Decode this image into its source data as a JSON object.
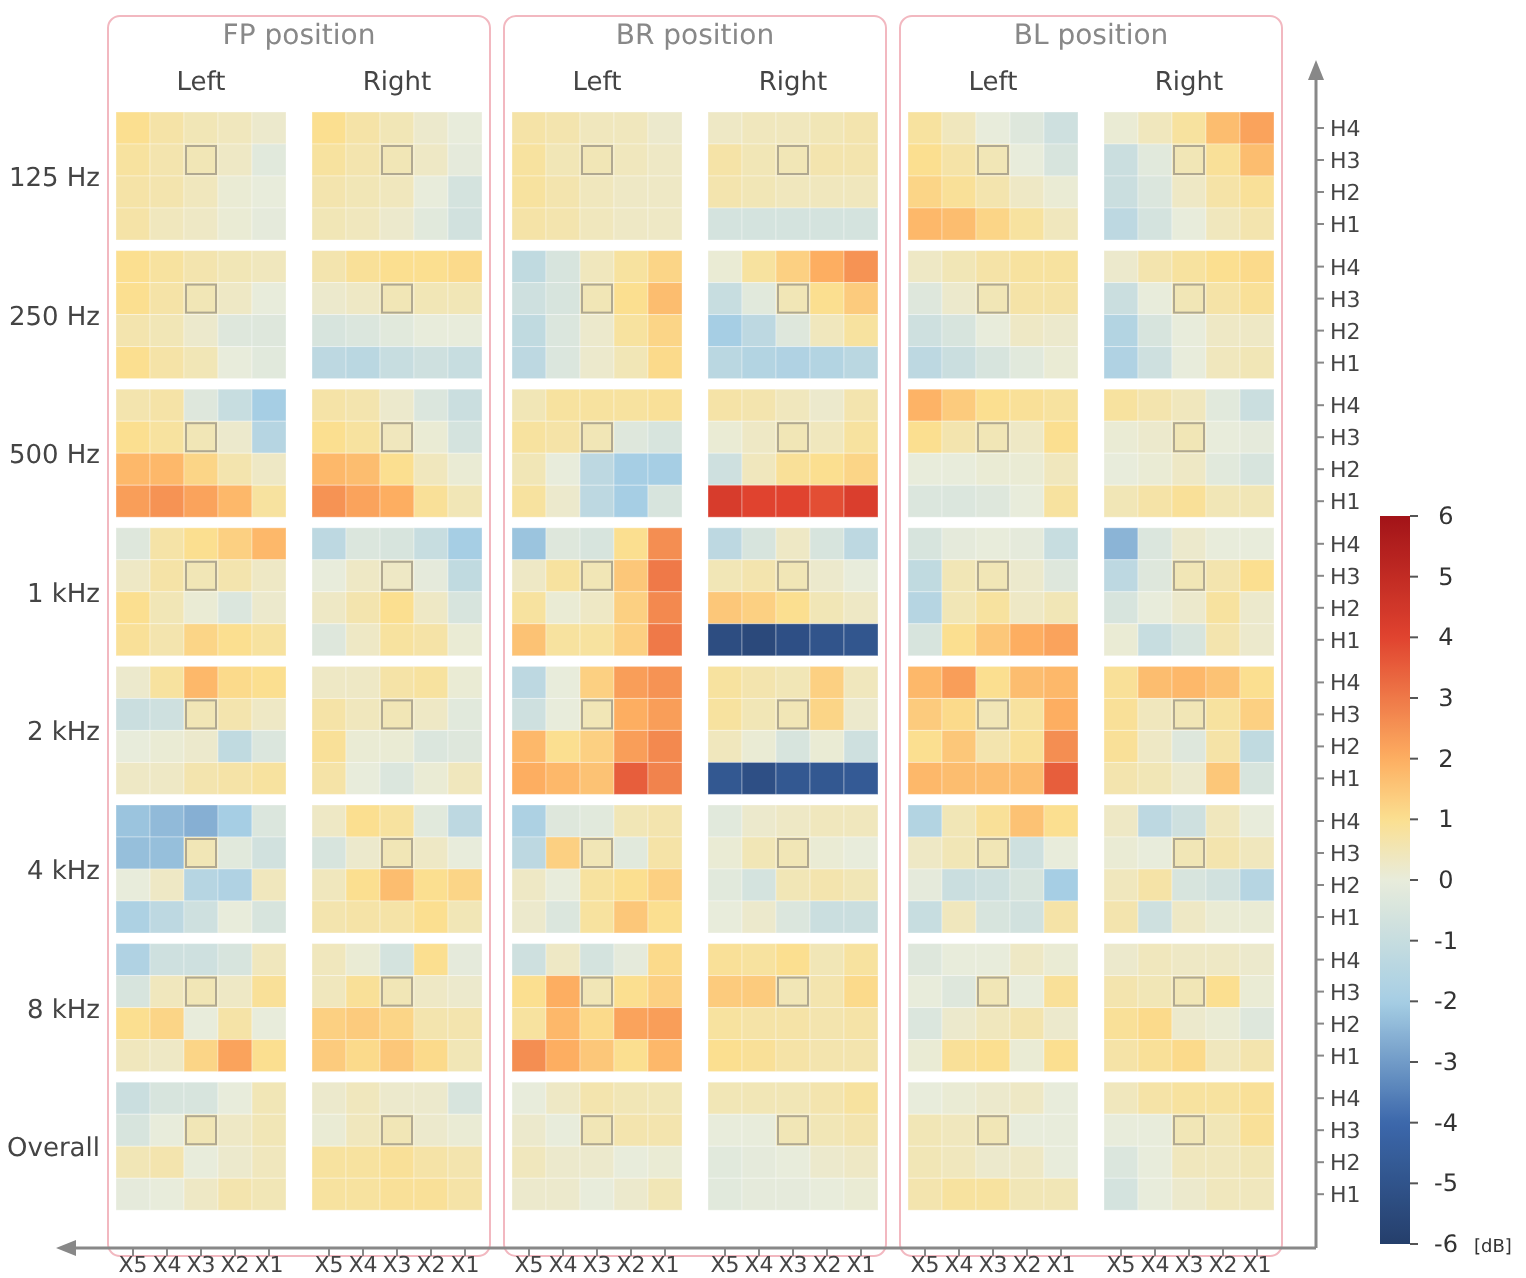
{
  "chart_data": {
    "type": "heatmap",
    "annotations": [
      "FP position",
      "Left",
      "Right",
      "BR position",
      "Left",
      "Right",
      "BL position",
      "Left",
      "Right",
      "125 Hz",
      "250 Hz",
      "500 Hz",
      "1 kHz",
      "2 kHz",
      "4 kHz",
      "8 kHz",
      "Overall"
    ],
    "clim": [
      -6,
      6
    ],
    "cticks": [
      -6,
      -5,
      -4,
      -3,
      -2,
      -1,
      0,
      1,
      2,
      3,
      4,
      5,
      6
    ],
    "clabel": "[dB]",
    "categories": [
      "X5",
      "X4",
      "X3",
      "X2",
      "X1",
      "X5",
      "X4",
      "X3",
      "X2",
      "X1",
      "X5",
      "X4",
      "X3",
      "X2",
      "X1",
      "X5",
      "X4",
      "X3",
      "X2",
      "X1",
      "X5",
      "X4",
      "X3",
      "X2",
      "X1",
      "X5",
      "X4",
      "X3",
      "X2",
      "X1"
    ],
    "y_categories": [
      "H4",
      "H3",
      "H2",
      "H1",
      "H4",
      "H3",
      "H2",
      "H1",
      "H4",
      "H3",
      "H2",
      "H1",
      "H4",
      "H3",
      "H2",
      "H1",
      "H4",
      "H3",
      "H2",
      "H1",
      "H4",
      "H3",
      "H2",
      "H1",
      "H4",
      "H3",
      "H2",
      "H1",
      "H4",
      "H3",
      "H2",
      "H1"
    ],
    "cells": [
      [
        1,
        0.7,
        0.5,
        0.4,
        0.2,
        1,
        0.7,
        0.5,
        0.2,
        0,
        0.7,
        0.6,
        0.4,
        0.4,
        0.2,
        0.3,
        0.4,
        0.4,
        0.5,
        0.6,
        0.8,
        0.4,
        0,
        -0.3,
        -0.8,
        0.1,
        0.4,
        0.8,
        1.7,
        2.2
      ],
      [
        0.8,
        0.6,
        0.5,
        0.3,
        -0.2,
        0.8,
        0.6,
        0.5,
        0.3,
        -0.1,
        0.8,
        0.5,
        0.5,
        0.4,
        0.3,
        0.7,
        0.5,
        0.5,
        0.6,
        0.6,
        1,
        0.7,
        0.5,
        0,
        -0.5,
        -0.9,
        -0.2,
        0.5,
        0.9,
        1.7
      ],
      [
        0.7,
        0.6,
        0.4,
        0.1,
        0,
        0.6,
        0.5,
        0.4,
        0,
        -0.6,
        0.8,
        0.6,
        0.4,
        0.3,
        0.3,
        0.6,
        0.5,
        0.4,
        0.4,
        0.4,
        1.2,
        0.9,
        0.6,
        0.3,
        0.1,
        -0.9,
        -0.4,
        0.3,
        0.7,
        0.9
      ],
      [
        0.7,
        0.4,
        0.3,
        0.1,
        -0.1,
        0.5,
        0.4,
        0.2,
        -0.2,
        -0.7,
        0.7,
        0.6,
        0.4,
        0.3,
        0.3,
        -0.6,
        -0.6,
        -0.6,
        -0.6,
        -0.6,
        1.8,
        1.7,
        1.2,
        0.8,
        0.4,
        -1.3,
        -0.6,
        0,
        0.4,
        0.6
      ],
      [
        1,
        0.8,
        0.6,
        0.5,
        0.4,
        0.6,
        0.9,
        1,
        1,
        1.1,
        -1.2,
        -0.5,
        0.4,
        0.8,
        1.2,
        0.1,
        0.8,
        1.3,
        2,
        2.5,
        0.3,
        0.5,
        0.7,
        0.8,
        0.8,
        0.2,
        0.6,
        0.8,
        1,
        1.1
      ],
      [
        1,
        0.7,
        0.5,
        0.3,
        0,
        0.2,
        0.3,
        0.5,
        0.5,
        0.5,
        -0.8,
        -0.5,
        0.5,
        1,
        1.7,
        -1,
        -0.2,
        0.5,
        1,
        1.4,
        -0.3,
        0.2,
        0.5,
        0.7,
        0.7,
        -0.9,
        0,
        0.5,
        0.7,
        0.9
      ],
      [
        0.6,
        0.5,
        0.2,
        -0.3,
        -0.3,
        -0.5,
        -0.4,
        -0.2,
        0,
        0,
        -1.2,
        -0.4,
        0.2,
        0.8,
        1.2,
        -2,
        -1.3,
        -0.3,
        0.4,
        0.8,
        -0.8,
        -0.5,
        0,
        0.3,
        0.2,
        -1.6,
        -0.5,
        0,
        0.3,
        0.3
      ],
      [
        1,
        0.7,
        0.5,
        0,
        -0.2,
        -1.3,
        -1.4,
        -1,
        -0.8,
        -1,
        -1.3,
        -0.4,
        0.2,
        0.5,
        1.1,
        -1.4,
        -1.6,
        -1.7,
        -1.6,
        -1.4,
        -1.3,
        -0.9,
        -0.5,
        -0.2,
        0.1,
        -1.7,
        -0.8,
        0,
        0.4,
        0.5
      ],
      [
        0.6,
        0.7,
        -0.3,
        -1,
        -2,
        0.7,
        0.6,
        0.2,
        -0.4,
        -0.9,
        0.5,
        0.8,
        0.8,
        0.8,
        0.9,
        0.7,
        0.6,
        0.4,
        0.2,
        0.6,
        1.9,
        1.4,
        1,
        0.9,
        0.8,
        0.8,
        0.6,
        0.4,
        -0.2,
        -0.9
      ],
      [
        1,
        0.8,
        0.5,
        0.2,
        -1.5,
        1,
        0.8,
        0.4,
        0.1,
        -0.6,
        0.8,
        0.7,
        0.5,
        -0.3,
        -0.5,
        0.1,
        0.3,
        0.5,
        0.4,
        0.8,
        1,
        0.6,
        0.5,
        0.3,
        1,
        0.1,
        0.2,
        0.5,
        0,
        -0.1
      ],
      [
        1.8,
        1.8,
        1.2,
        0.6,
        0.3,
        1.8,
        1.7,
        1,
        0.4,
        0.1,
        0.5,
        0,
        -1.3,
        -2,
        -2,
        -0.8,
        0.4,
        0.9,
        1,
        1.2,
        0,
        0,
        0.1,
        0.1,
        0.4,
        0,
        0.1,
        0.3,
        -0.2,
        -0.5
      ],
      [
        2.3,
        2.5,
        2.2,
        1.8,
        0.8,
        2.5,
        2.2,
        2,
        0.9,
        0.5,
        0.8,
        0.2,
        -1.3,
        -2,
        -0.5,
        4.3,
        4,
        4,
        3.8,
        4.2,
        -0.4,
        -0.4,
        -0.3,
        0,
        0.8,
        0.5,
        0.7,
        0.9,
        0.5,
        0.5
      ],
      [
        -0.3,
        0.7,
        1,
        1.3,
        1.8,
        -1.3,
        -0.4,
        -0.5,
        -1,
        -2,
        -2.2,
        -0.3,
        -0.5,
        1,
        2.6,
        -1.3,
        -0.5,
        0.3,
        -0.5,
        -1.3,
        -0.5,
        -0.1,
        0,
        -0.1,
        -1,
        -2.5,
        -0.4,
        0.2,
        0,
        0
      ],
      [
        0.3,
        0.7,
        0.5,
        0.6,
        0.3,
        0,
        0.3,
        0.3,
        -0.1,
        -1.2,
        0.3,
        0.8,
        0.5,
        1.5,
        3,
        0.5,
        0.6,
        0.5,
        0.2,
        0,
        -1.2,
        0.5,
        0.5,
        0.2,
        -0.3,
        -1.3,
        -0.3,
        0.5,
        0.6,
        1
      ],
      [
        1,
        0.5,
        0.1,
        -0.4,
        0.2,
        0.3,
        0.6,
        1,
        0.3,
        -0.5,
        0.8,
        0.1,
        0.3,
        1.3,
        2.7,
        1.5,
        1.3,
        1,
        0.5,
        0.3,
        -1.5,
        0.5,
        0.8,
        0.3,
        0.5,
        -0.5,
        0,
        0.2,
        0.8,
        0.2
      ],
      [
        0.9,
        0.6,
        1.2,
        1,
        0.8,
        -0.3,
        0.3,
        0.8,
        0.7,
        0.1,
        1.6,
        0.8,
        0.8,
        1.3,
        3,
        -5.3,
        -5.5,
        -5.2,
        -5,
        -4.9,
        -0.5,
        1,
        1.5,
        2,
        2.2,
        0.1,
        -1,
        -0.5,
        0.6,
        0.2
      ],
      [
        0.2,
        0.8,
        1.8,
        1.1,
        1,
        0.3,
        0.3,
        0.7,
        0.8,
        0.1,
        -1.3,
        0,
        1.3,
        2.3,
        2.5,
        0.8,
        0.6,
        0.5,
        1.3,
        0.4,
        1.8,
        2.3,
        1,
        1.7,
        1.8,
        0.9,
        1.7,
        1.8,
        1.6,
        1
      ],
      [
        -0.9,
        -0.8,
        0.5,
        0.6,
        0.3,
        0.7,
        0.4,
        0.5,
        0.3,
        -0.2,
        -0.8,
        0,
        0.5,
        2,
        2.3,
        0.8,
        0.5,
        0.5,
        1.2,
        0.2,
        1.4,
        1.1,
        0.5,
        0.8,
        2,
        0.9,
        0.4,
        0.5,
        0.8,
        1.3
      ],
      [
        0,
        0.1,
        0.2,
        -1.2,
        -0.4,
        0.9,
        0.1,
        0.1,
        -0.4,
        -0.3,
        1.8,
        1,
        1.3,
        2.3,
        2.7,
        0.4,
        0.1,
        -0.5,
        0.1,
        -0.8,
        1,
        1.5,
        0.6,
        0.9,
        2.6,
        0.9,
        0.3,
        -0.3,
        0.7,
        -1.2
      ],
      [
        0.3,
        0.3,
        0.6,
        0.7,
        0.8,
        0.7,
        0,
        -0.4,
        0.1,
        0.4,
        2,
        1.8,
        1.6,
        3.5,
        2.8,
        -4.8,
        -5.2,
        -4.8,
        -4.8,
        -4.7,
        1.8,
        1.7,
        1.7,
        1.7,
        3.5,
        0.6,
        0.5,
        0.2,
        1.5,
        -0.5
      ],
      [
        -2.2,
        -2.4,
        -2.6,
        -2,
        -0.4,
        0.3,
        1,
        0.8,
        -0.2,
        -1.3,
        -1.8,
        -0.3,
        -0.2,
        0.5,
        0.6,
        -0.2,
        0.2,
        0.3,
        0.4,
        0.4,
        -1.6,
        0.5,
        0.9,
        1.6,
        1,
        0.3,
        -1.3,
        -0.8,
        0.4,
        0
      ],
      [
        -2.3,
        -2.3,
        0.5,
        -0.2,
        -0.7,
        -0.5,
        0.2,
        0.5,
        0.3,
        0,
        -1.3,
        1.3,
        0.5,
        -0.2,
        0.7,
        0.1,
        0.5,
        0.5,
        0.1,
        0,
        0.3,
        0.5,
        0.5,
        -0.8,
        0,
        0.1,
        0,
        0.5,
        0.6,
        0.4
      ],
      [
        0,
        0.3,
        -1.5,
        -1.7,
        0.4,
        0.4,
        1,
        1.7,
        1,
        1.2,
        0.3,
        0,
        0.8,
        1,
        1.3,
        -0.2,
        -0.6,
        0.5,
        0.6,
        0.5,
        -0.1,
        -0.9,
        -0.8,
        -0.5,
        -2,
        0.4,
        0.7,
        -0.5,
        -0.7,
        -1.5
      ],
      [
        -1.8,
        -1.3,
        -0.8,
        0,
        -0.5,
        0.6,
        0.7,
        0.7,
        1,
        0.5,
        0.2,
        -0.4,
        0.8,
        1.5,
        1,
        0,
        0.2,
        -0.4,
        -0.9,
        -0.9,
        -1,
        0.4,
        -0.5,
        -0.7,
        0.7,
        0.6,
        -0.8,
        0.3,
        0.1,
        0.1
      ],
      [
        -1.7,
        -0.8,
        -0.8,
        -0.5,
        0.4,
        0.4,
        0.1,
        -0.6,
        1,
        -0.1,
        -0.8,
        0.3,
        -0.6,
        -0.1,
        1.1,
        0.9,
        0.8,
        1,
        0.5,
        0.8,
        -0.3,
        0,
        0,
        0.3,
        0.1,
        0.2,
        0.4,
        0.3,
        0.3,
        0.2
      ],
      [
        -0.5,
        0.4,
        0.5,
        0.3,
        0.9,
        0.4,
        0.9,
        0.5,
        0.3,
        0.2,
        1,
        2,
        0.5,
        1,
        1.3,
        1.4,
        1.4,
        0.5,
        0.6,
        1.1,
        0,
        -0.3,
        0.5,
        0,
        0.9,
        0.6,
        0.5,
        0.5,
        1,
        0.1
      ],
      [
        1,
        1.2,
        0,
        0.7,
        0,
        1.3,
        1.4,
        1.2,
        0.6,
        0.6,
        0.8,
        1.8,
        1.1,
        2.2,
        2.3,
        0.8,
        0.7,
        0.7,
        0.6,
        0.7,
        -0.4,
        0.2,
        0.4,
        0.6,
        0.2,
        0.9,
        1.1,
        0.2,
        0.1,
        -0.3
      ],
      [
        0.4,
        0.3,
        1.2,
        2.2,
        1,
        1.4,
        1.1,
        1.5,
        1.1,
        0.5,
        2.6,
        2,
        1.5,
        1,
        1.8,
        1,
        0.9,
        0.7,
        0.6,
        0.6,
        0.1,
        0.9,
        1,
        0.1,
        1,
        0.7,
        0.9,
        1.1,
        0.4,
        0.6
      ],
      [
        -0.9,
        -0.5,
        -0.5,
        0,
        0.5,
        0.2,
        0.4,
        0.2,
        0.2,
        -0.5,
        0,
        0.3,
        0.6,
        0.5,
        0.5,
        0.5,
        0.5,
        0.5,
        0.6,
        0.8,
        0,
        0.1,
        0.2,
        0.3,
        0,
        0.4,
        0.7,
        0.8,
        0.8,
        0.9
      ],
      [
        -0.5,
        0,
        0.5,
        0.3,
        0.5,
        0.1,
        0.4,
        0.5,
        0.2,
        0.1,
        0.2,
        0,
        0.5,
        0.6,
        0.6,
        0,
        0,
        0.5,
        0.5,
        0.6,
        0.5,
        0.4,
        0.5,
        0,
        0,
        0,
        0,
        0.5,
        0.5,
        0.9
      ],
      [
        0.5,
        0.6,
        0,
        0.2,
        0.4,
        0.8,
        0.8,
        0.9,
        0.7,
        0.6,
        0.4,
        0.2,
        0.2,
        0,
        0.1,
        -0.2,
        -0.1,
        0,
        0.2,
        0.3,
        0.5,
        0.4,
        0.2,
        0.3,
        0,
        -0.4,
        0,
        0.4,
        0.4,
        0.5
      ],
      [
        -0.1,
        0,
        0.3,
        0.6,
        0.5,
        0.8,
        0.8,
        0.9,
        0.9,
        0.7,
        0.2,
        0.2,
        0,
        0.2,
        0.5,
        -0.2,
        -0.1,
        -0.1,
        0,
        0.1,
        0.6,
        0.8,
        0.8,
        0.5,
        0.5,
        -0.6,
        0,
        0.2,
        0.4,
        0.4
      ]
    ]
  }
}
